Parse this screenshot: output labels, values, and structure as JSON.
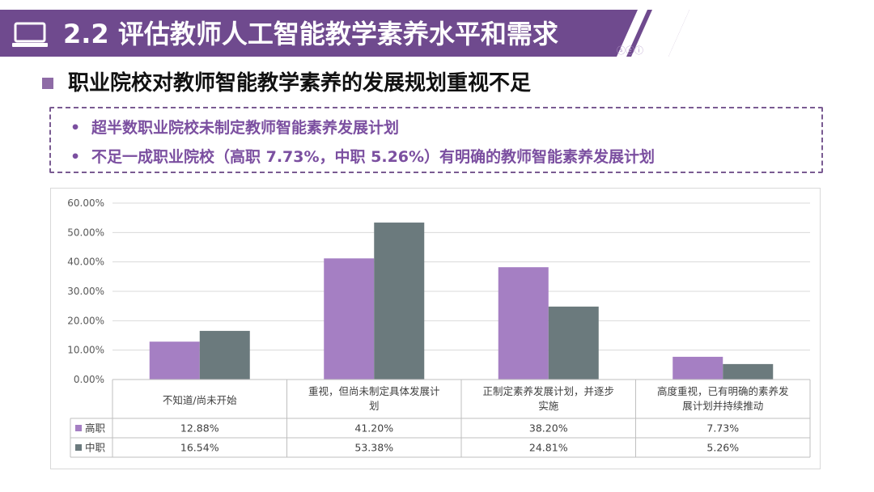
{
  "header": {
    "title": "2.2 评估教师人工智能教学素养水平和需求",
    "icon": "laptop-icon",
    "watermark": "ⓢⓔⓘ"
  },
  "heading": "职业院校对教师智能教学素养的发展规划重视不足",
  "notes": [
    "超半数职业院校未制定教师智能素养发展计划",
    "不足一成职业院校（高职 7.73%，中职 5.26%）有明确的教师智能素养发展计划"
  ],
  "colors": {
    "banner": "#6f4a8e",
    "accent": "#8e6ba6",
    "series1": "#a57fc3",
    "series2": "#6b7a7d"
  },
  "chart_data": {
    "type": "bar",
    "categories": [
      [
        "不知道/尚未开始"
      ],
      [
        "重视，但尚未制定具体发展计",
        "划"
      ],
      [
        "正制定素养发展计划，并逐步",
        "实施"
      ],
      [
        "高度重视，已有明确的素养发",
        "展计划并持续推动"
      ]
    ],
    "series": [
      {
        "name": "高职",
        "values": [
          12.88,
          41.2,
          38.2,
          7.73
        ],
        "labels": [
          "12.88%",
          "41.20%",
          "38.20%",
          "7.73%"
        ]
      },
      {
        "name": "中职",
        "values": [
          16.54,
          53.38,
          24.81,
          5.26
        ],
        "labels": [
          "16.54%",
          "53.38%",
          "24.81%",
          "5.26%"
        ]
      }
    ],
    "ylim": [
      0,
      60
    ],
    "yticks": [
      "0.00%",
      "10.00%",
      "20.00%",
      "30.00%",
      "40.00%",
      "50.00%",
      "60.00%"
    ],
    "grid": true,
    "legend": "data-table"
  }
}
